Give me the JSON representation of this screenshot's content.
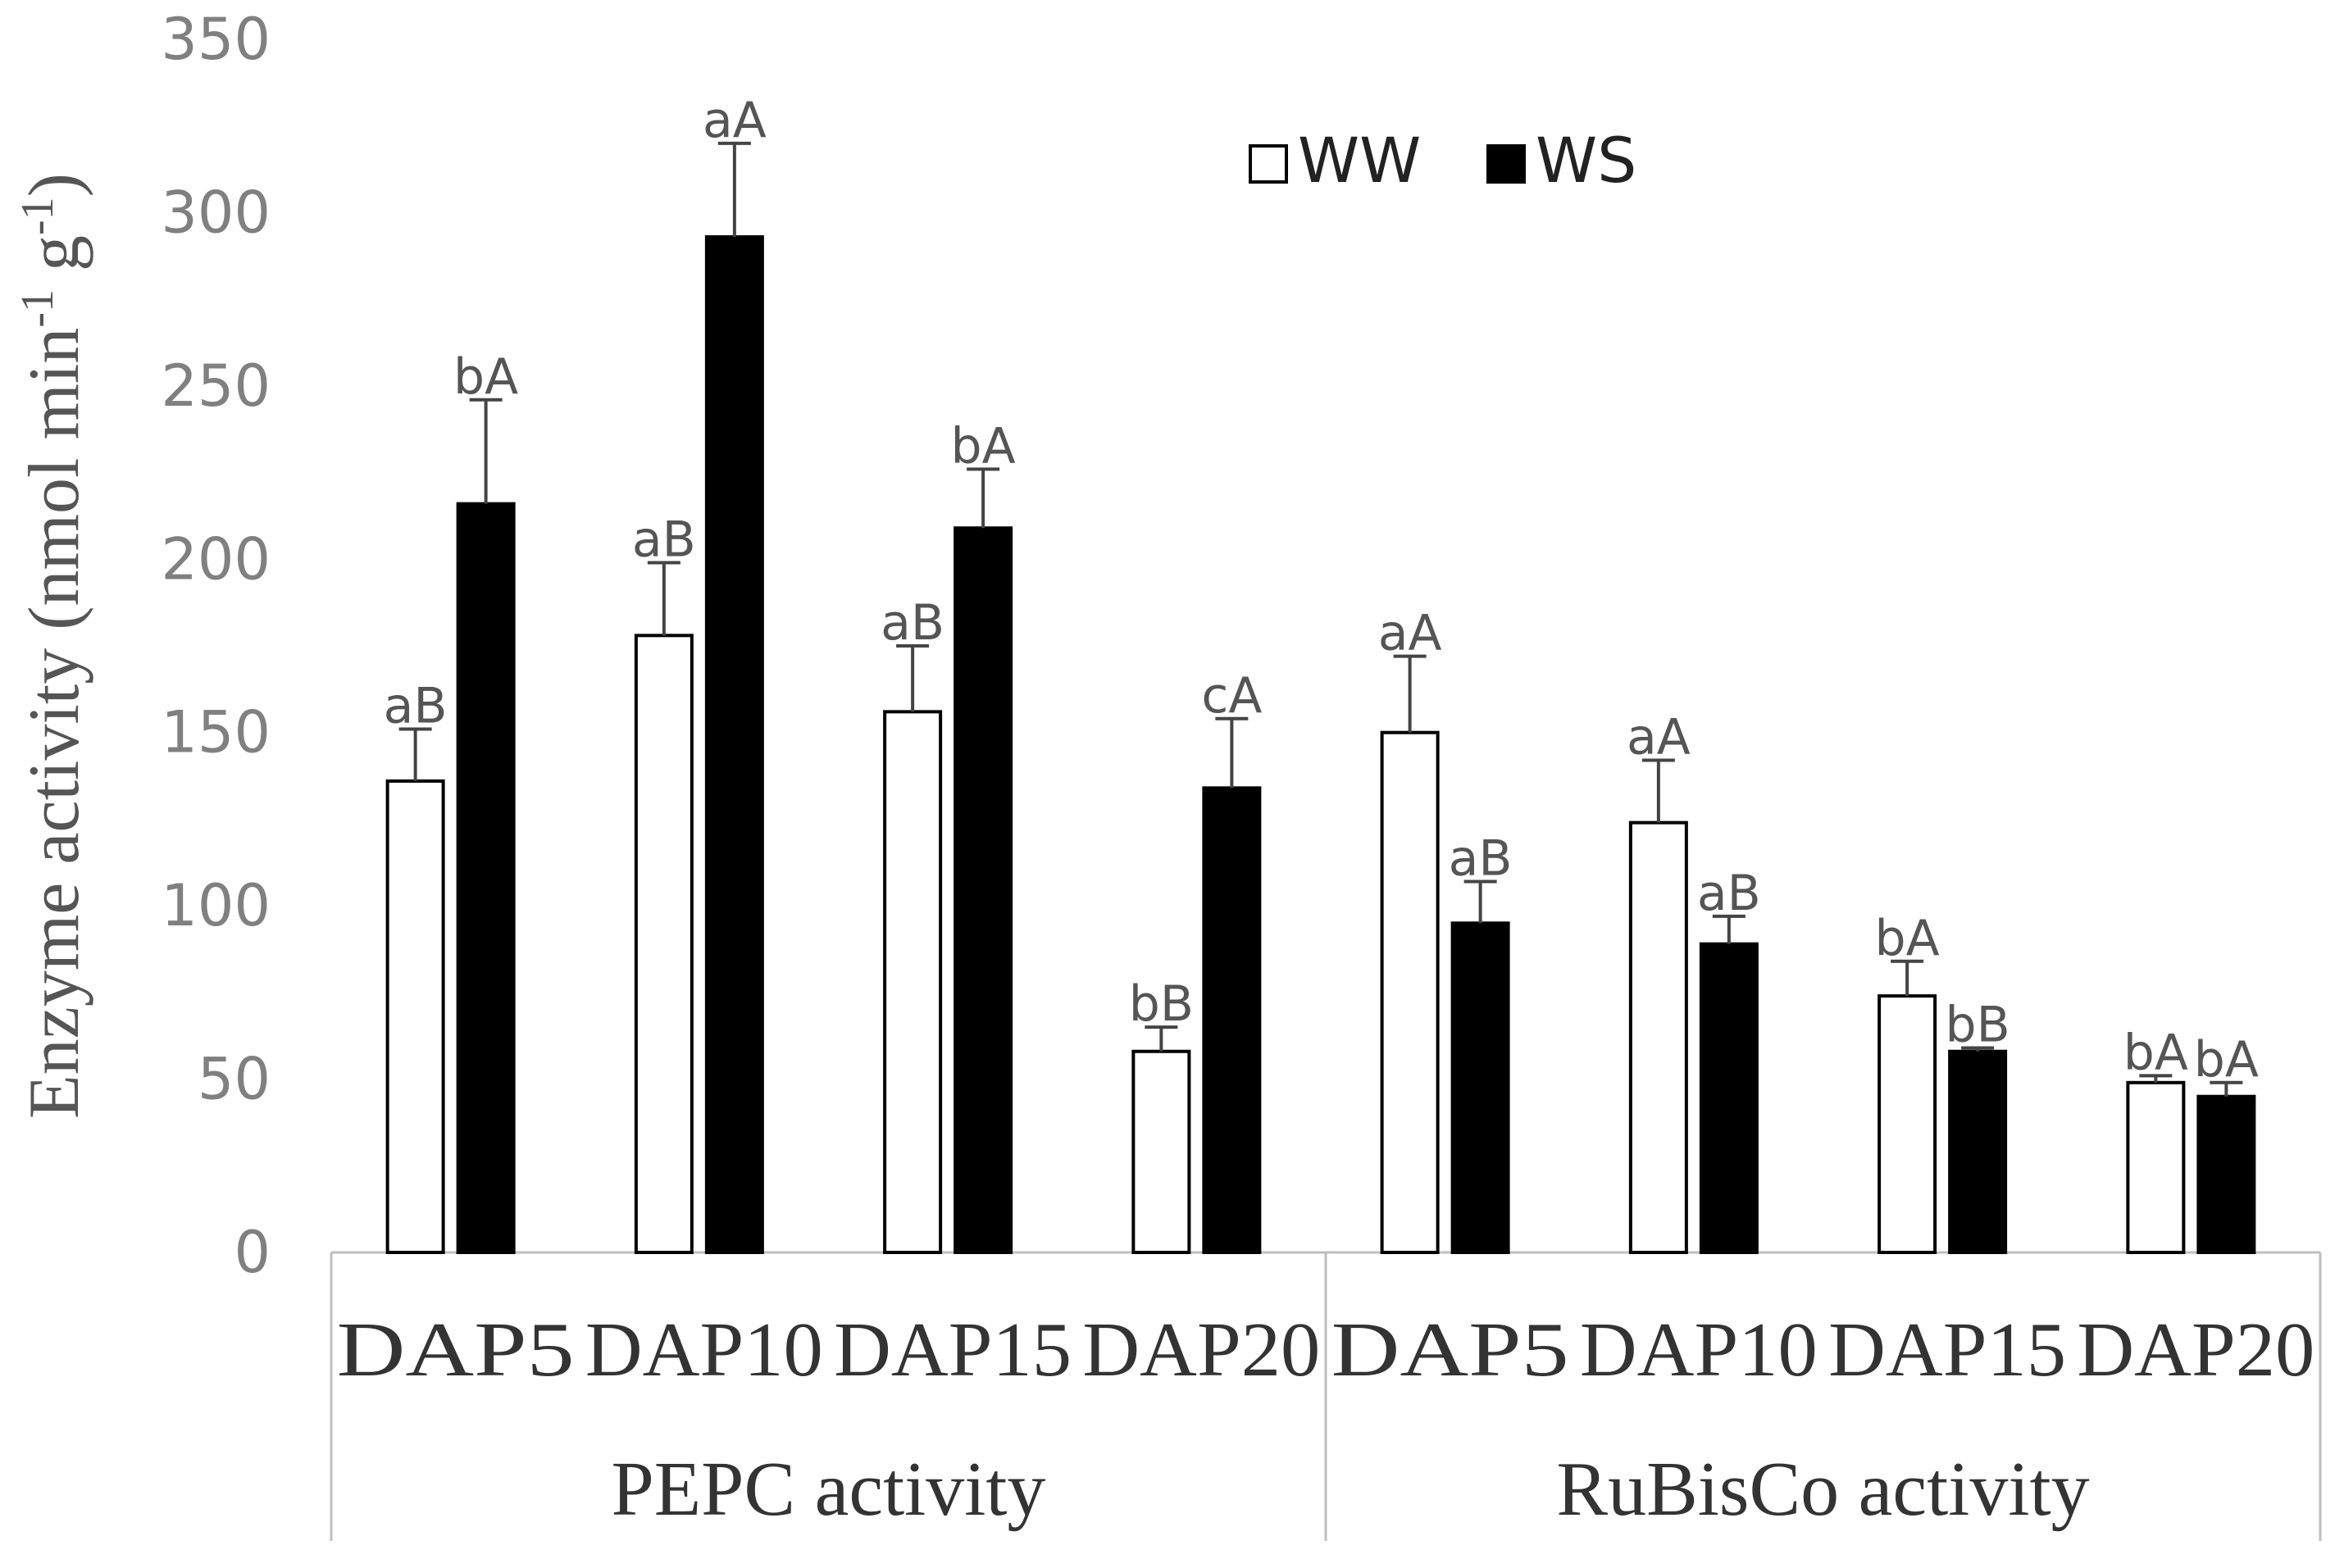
{
  "chart_data": {
    "type": "bar",
    "ylabel_parts": [
      "Enzyme activity (nmol min",
      "-1",
      " g",
      "-1",
      ")"
    ],
    "ylim": [
      0,
      350
    ],
    "yticks": [
      "0",
      "50",
      "100",
      "150",
      "200",
      "250",
      "300",
      "350"
    ],
    "grid": false,
    "legend_position": "top-center",
    "groups": [
      {
        "label": "PEPC activity",
        "categories": [
          "DAP5",
          "DAP10",
          "DAP15",
          "DAP20"
        ]
      },
      {
        "label": "RuBisCo activity",
        "categories": [
          "DAP5",
          "DAP10",
          "DAP15",
          "DAP20"
        ]
      }
    ],
    "categories": [
      "DAP5",
      "DAP10",
      "DAP15",
      "DAP20",
      "DAP5",
      "DAP10",
      "DAP15",
      "DAP20"
    ],
    "series": [
      {
        "name": "WW",
        "fill": "#ffffff",
        "values": [
          136,
          178,
          156,
          58,
          150,
          124,
          74,
          49
        ],
        "errors": [
          15,
          21,
          19,
          7,
          22,
          18,
          10,
          2
        ],
        "labels": [
          "aB",
          "aB",
          "aB",
          "bB",
          "aA",
          "aA",
          "bA",
          "bA"
        ]
      },
      {
        "name": "WS",
        "fill": "#000000",
        "values": [
          216,
          293,
          209,
          134,
          95,
          89,
          58,
          45
        ],
        "errors": [
          30,
          27,
          17,
          20,
          12,
          8,
          1,
          4
        ],
        "labels": [
          "bA",
          "aA",
          "bA",
          "cA",
          "aB",
          "aB",
          "bB",
          "bA"
        ]
      }
    ]
  }
}
